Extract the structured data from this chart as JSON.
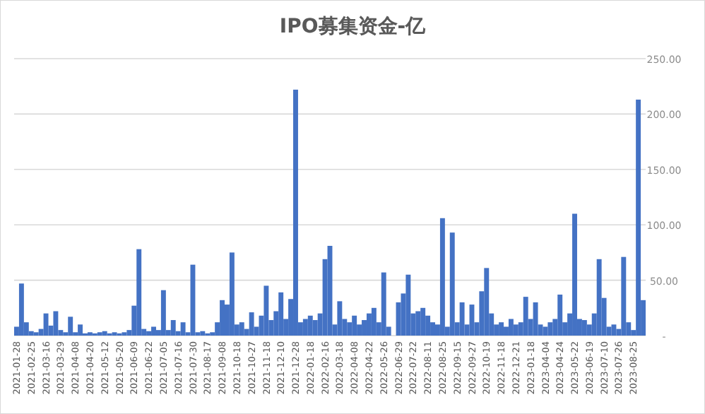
{
  "chart_data": {
    "type": "bar",
    "title": "IPO募集资金-亿",
    "color": "#4472c4",
    "grid": "y",
    "categories": [
      "2021-01-28",
      null,
      null,
      "2021-02-25",
      null,
      null,
      "2021-03-16",
      null,
      null,
      "2021-03-29",
      null,
      null,
      "2021-04-08",
      null,
      null,
      "2021-04-20",
      null,
      null,
      "2021-05-12",
      null,
      null,
      "2021-05-20",
      null,
      null,
      "2021-06-09",
      null,
      null,
      "2021-06-22",
      null,
      null,
      "2021-07-05",
      null,
      null,
      "2021-07-16",
      null,
      null,
      "2021-07-30",
      null,
      null,
      "2021-08-17",
      null,
      null,
      "2021-09-08",
      null,
      null,
      "2021-10-18",
      null,
      null,
      "2021-10-27",
      null,
      null,
      "2021-11-18",
      null,
      null,
      "2021-12-10",
      null,
      null,
      "2021-12-28",
      null,
      null,
      "2022-01-18",
      null,
      null,
      "2022-02-16",
      null,
      null,
      "2022-03-18",
      null,
      null,
      "2022-04-08",
      null,
      null,
      "2022-04-22",
      null,
      null,
      "2022-05-26",
      null,
      null,
      "2022-06-29",
      null,
      null,
      "2022-07-22",
      null,
      null,
      "2022-08-11",
      null,
      null,
      "2022-08-25",
      null,
      null,
      "2022-09-15",
      null,
      null,
      "2022-09-27",
      null,
      null,
      "2022-10-19",
      null,
      null,
      "2022-11-18",
      null,
      null,
      "2022-12-21",
      null,
      null,
      "2023-01-18",
      null,
      null,
      "2023-04-04",
      null,
      null,
      "2023-04-24",
      null,
      null,
      "2023-05-22",
      null,
      null,
      "2023-06-19",
      null,
      null,
      "2023-07-10",
      null,
      null,
      "2023-07-26",
      null,
      null,
      "2023-08-25",
      null,
      null
    ],
    "values": [
      8,
      47,
      12,
      4,
      3,
      6,
      20,
      9,
      22,
      5,
      3,
      17,
      3,
      10,
      2,
      3,
      2,
      3,
      4,
      2,
      3,
      2,
      3,
      5,
      27,
      78,
      6,
      4,
      8,
      5,
      41,
      5,
      14,
      4,
      12,
      3,
      64,
      3,
      4,
      2,
      3,
      12,
      32,
      28,
      75,
      10,
      12,
      6,
      21,
      8,
      18,
      45,
      14,
      22,
      39,
      15,
      33,
      222,
      12,
      15,
      18,
      14,
      20,
      69,
      81,
      10,
      31,
      15,
      12,
      18,
      10,
      14,
      20,
      25,
      12,
      57,
      8,
      0,
      30,
      38,
      55,
      20,
      22,
      25,
      18,
      12,
      10,
      106,
      8,
      93,
      12,
      30,
      10,
      28,
      12,
      40,
      61,
      20,
      10,
      12,
      8,
      15,
      10,
      12,
      35,
      15,
      30,
      10,
      8,
      12,
      15,
      37,
      12,
      20,
      110,
      15,
      14,
      10,
      20,
      69,
      34,
      8,
      10,
      6,
      71,
      12,
      5,
      213,
      32
    ],
    "ylim": [
      0,
      250
    ],
    "yticks": [
      {
        "value": 0,
        "label": "-"
      },
      {
        "value": 50,
        "label": "50.00"
      },
      {
        "value": 100,
        "label": "100.00"
      },
      {
        "value": 150,
        "label": "150.00"
      },
      {
        "value": 200,
        "label": "200.00"
      },
      {
        "value": 250,
        "label": "250.00"
      }
    ]
  }
}
